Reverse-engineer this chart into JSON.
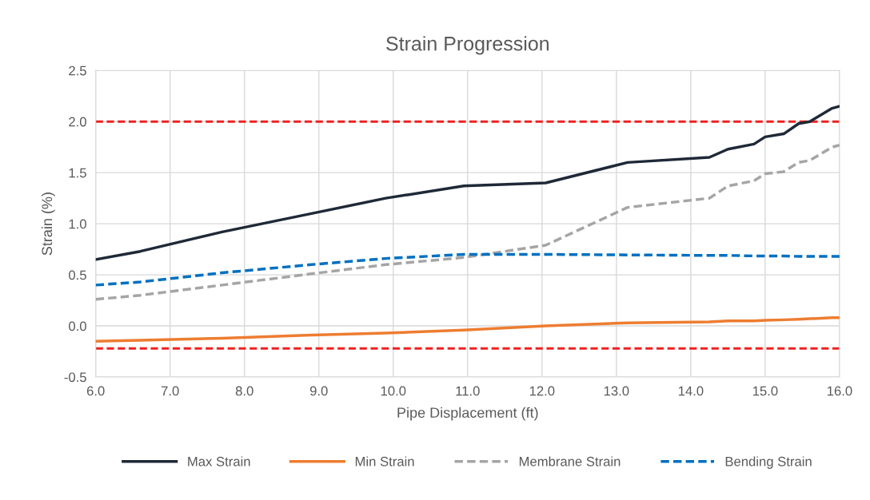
{
  "chart_data": {
    "type": "line",
    "title": "Strain Progression",
    "xlabel": "Pipe Displacement (ft)",
    "ylabel": "Strain (%)",
    "x": [
      6.0,
      6.6,
      7.7,
      8.9,
      9.9,
      10.95,
      12.05,
      13.15,
      14.25,
      14.5,
      14.85,
      15.0,
      15.25,
      15.45,
      15.6,
      15.9,
      16.0
    ],
    "series": [
      {
        "name": "Max Strain",
        "color": "#1f2937",
        "line_style": "solid",
        "values": [
          0.65,
          0.73,
          0.92,
          1.1,
          1.25,
          1.37,
          1.4,
          1.6,
          1.65,
          1.73,
          1.78,
          1.85,
          1.88,
          1.98,
          2.0,
          2.13,
          2.15
        ]
      },
      {
        "name": "Min Strain",
        "color": "#ed7d31",
        "line_style": "solid",
        "values": [
          -0.15,
          -0.14,
          -0.12,
          -0.09,
          -0.07,
          -0.04,
          0.0,
          0.03,
          0.04,
          0.05,
          0.05,
          0.055,
          0.06,
          0.065,
          0.07,
          0.08,
          0.08
        ]
      },
      {
        "name": "Membrane Strain",
        "color": "#a5a5a5",
        "line_style": "dashed",
        "values": [
          0.26,
          0.3,
          0.4,
          0.51,
          0.6,
          0.67,
          0.79,
          1.16,
          1.25,
          1.37,
          1.42,
          1.49,
          1.51,
          1.6,
          1.62,
          1.75,
          1.77
        ]
      },
      {
        "name": "Bending Strain",
        "color": "#0070c0",
        "line_style": "dashed",
        "values": [
          0.4,
          0.43,
          0.52,
          0.6,
          0.66,
          0.7,
          0.7,
          0.695,
          0.69,
          0.69,
          0.685,
          0.685,
          0.685,
          0.68,
          0.68,
          0.68,
          0.68
        ]
      }
    ],
    "ref_lines": [
      {
        "axis": "y",
        "value": 2.0,
        "color": "#ee2222",
        "line_style": "dashed"
      },
      {
        "axis": "y",
        "value": -0.22,
        "color": "#ee2222",
        "line_style": "dashed"
      }
    ],
    "xlim": [
      6.0,
      16.0
    ],
    "xticks": [
      {
        "value": 6,
        "label": "6.0"
      },
      {
        "value": 7,
        "label": "7.0"
      },
      {
        "value": 8,
        "label": "8.0"
      },
      {
        "value": 9,
        "label": "9.0"
      },
      {
        "value": 10,
        "label": "10.0"
      },
      {
        "value": 11,
        "label": "11.0"
      },
      {
        "value": 12,
        "label": "12.0"
      },
      {
        "value": 13,
        "label": "13.0"
      },
      {
        "value": 14,
        "label": "14.0"
      },
      {
        "value": 15,
        "label": "15.0"
      },
      {
        "value": 16,
        "label": "16.0"
      }
    ],
    "ylim": [
      -0.5,
      2.5
    ],
    "yticks": [
      {
        "value": -0.5,
        "label": "-0.5"
      },
      {
        "value": 0,
        "label": "0.0"
      },
      {
        "value": 0.5,
        "label": "0.5"
      },
      {
        "value": 1,
        "label": "1.0"
      },
      {
        "value": 1.5,
        "label": "1.5"
      },
      {
        "value": 2,
        "label": "2.0"
      },
      {
        "value": 2.5,
        "label": "2.5"
      }
    ],
    "grid": true,
    "legend": "bottom",
    "marker": "none"
  }
}
